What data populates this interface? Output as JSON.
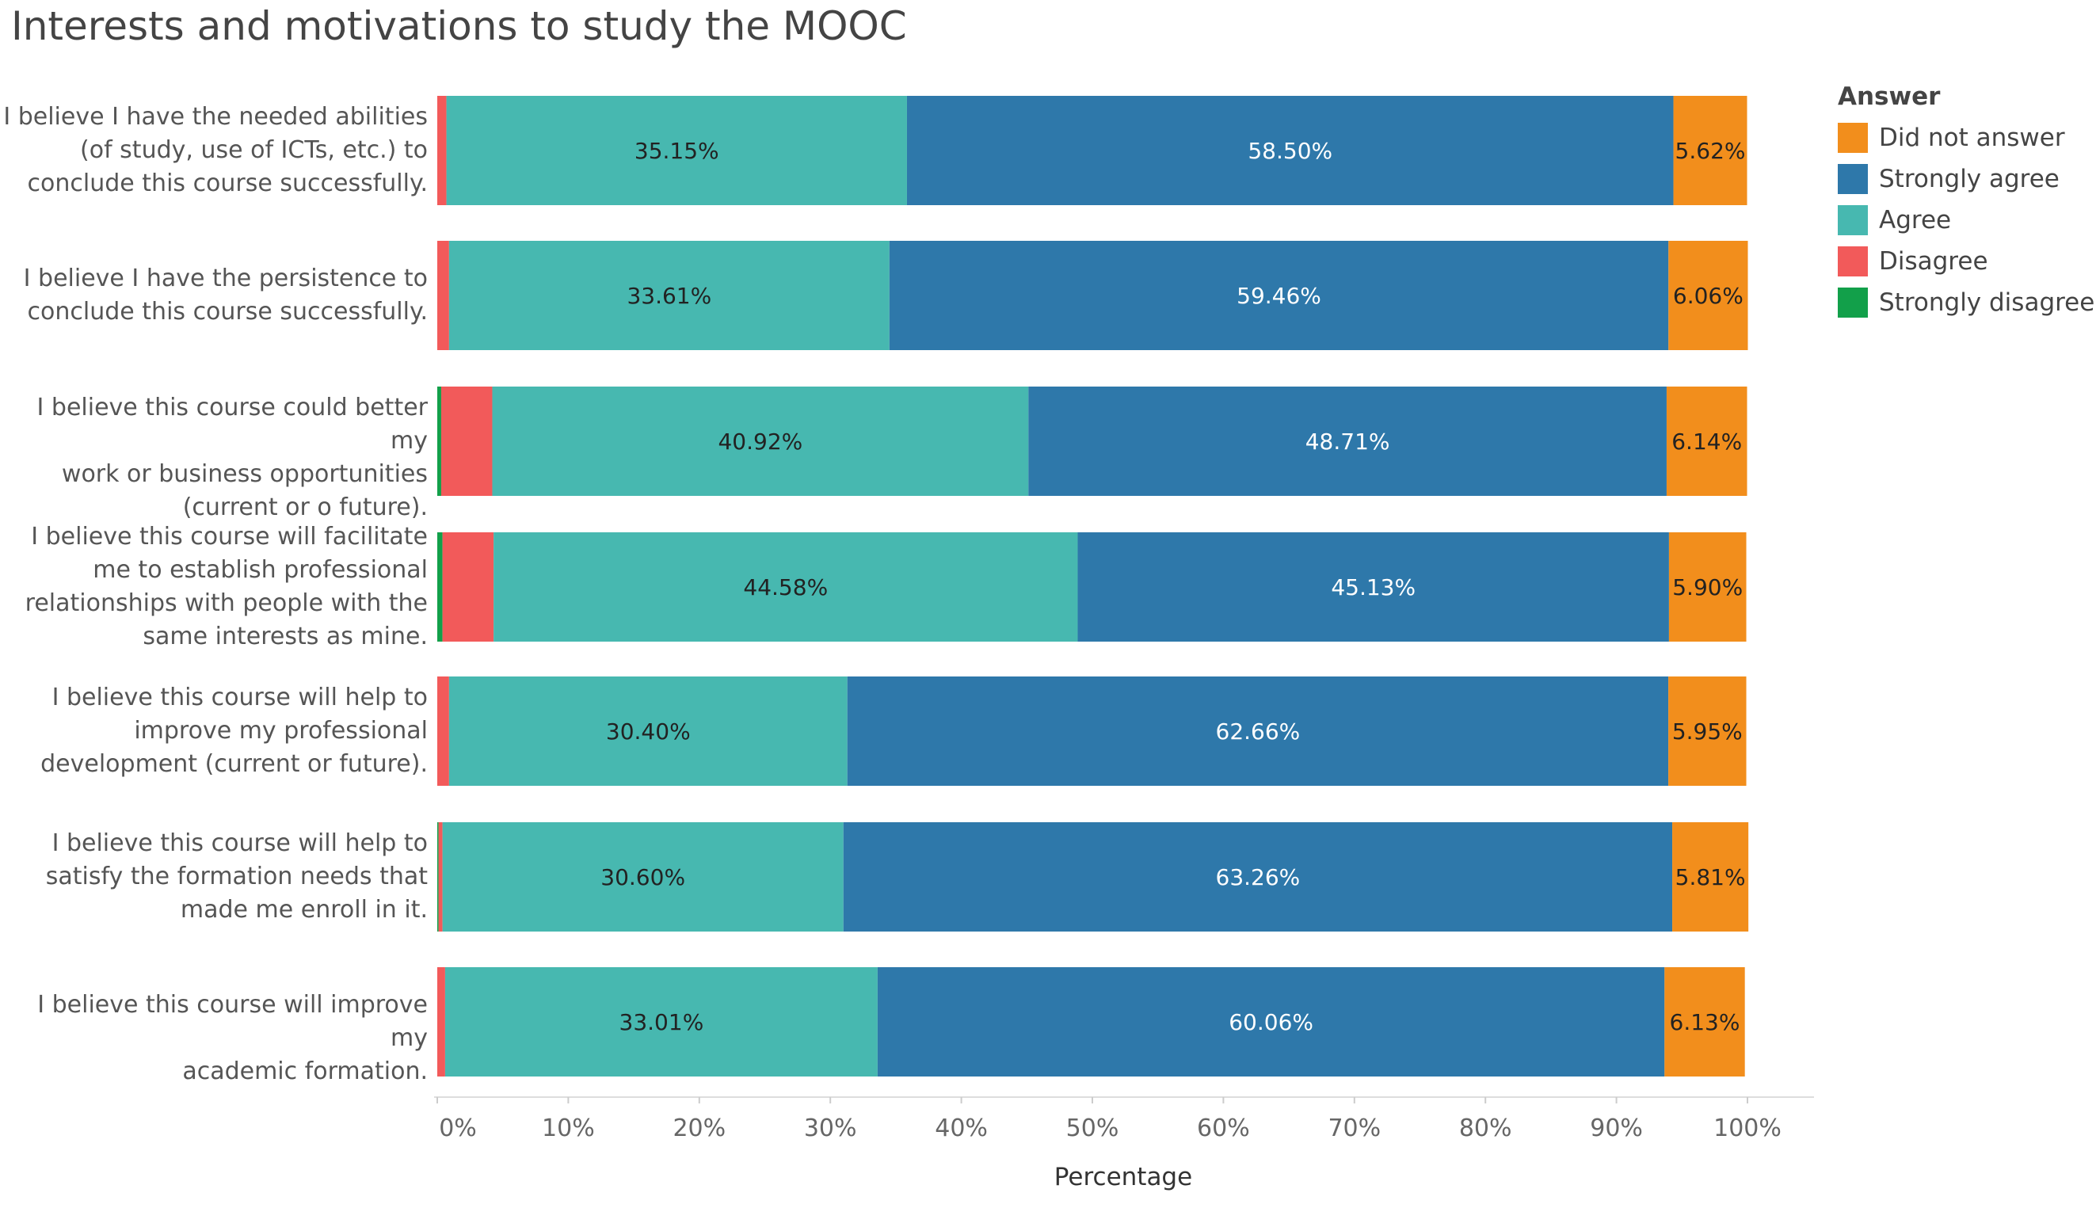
{
  "chart_data": {
    "type": "bar",
    "orientation": "horizontal",
    "stacked": true,
    "title": "Interests and motivations to study the MOOC",
    "xlabel": "Percentage",
    "ylabel": "",
    "xlim": [
      0,
      100
    ],
    "xticks": [
      "0%",
      "10%",
      "20%",
      "30%",
      "40%",
      "50%",
      "60%",
      "70%",
      "80%",
      "90%",
      "100%"
    ],
    "legend_title": "Answer",
    "legend_order": [
      "Did not answer",
      "Strongly agree",
      "Agree",
      "Disagree",
      "Strongly disagree"
    ],
    "stack_order": [
      "Strongly disagree",
      "Disagree",
      "Agree",
      "Strongly agree",
      "Did not answer"
    ],
    "colors": {
      "Did not answer": "#f28e1c",
      "Strongly agree": "#2e78aa",
      "Agree": "#47b8b0",
      "Disagree": "#f25a5a",
      "Strongly disagree": "#12a04a"
    },
    "categories": [
      [
        "I believe I have the needed abilities",
        "(of study, use of ICTs, etc.) to",
        "conclude this course successfully."
      ],
      [
        "I believe I have the persistence to",
        "conclude this course successfully."
      ],
      [
        "I believe this course could better my",
        "work or business opportunities",
        "(current or o future)."
      ],
      [
        "I believe this course will facilitate",
        "me to establish professional",
        "relationships with people with the",
        "same interests as mine."
      ],
      [
        "I believe this course will help to",
        "improve my professional",
        "development (current or future)."
      ],
      [
        "I believe this course will help to",
        "satisfy the formation needs that",
        "made me enroll in it."
      ],
      [
        "I believe this course will improve my",
        "academic formation."
      ]
    ],
    "series": [
      {
        "name": "Strongly disagree",
        "values": [
          0.0,
          0.0,
          0.3,
          0.4,
          0.0,
          0.1,
          0.0
        ]
      },
      {
        "name": "Disagree",
        "values": [
          0.7,
          0.9,
          3.9,
          3.9,
          0.9,
          0.3,
          0.6
        ]
      },
      {
        "name": "Agree",
        "values": [
          35.15,
          33.61,
          40.92,
          44.58,
          30.4,
          30.6,
          33.01
        ]
      },
      {
        "name": "Strongly agree",
        "values": [
          58.5,
          59.46,
          48.71,
          45.13,
          62.66,
          63.26,
          60.06
        ]
      },
      {
        "name": "Did not answer",
        "values": [
          5.62,
          6.06,
          6.14,
          5.9,
          5.95,
          5.81,
          6.13
        ]
      }
    ],
    "data_labels": [
      {
        "Agree": "35.15%",
        "Strongly agree": "58.50%",
        "Did not answer": "5.62%"
      },
      {
        "Agree": "33.61%",
        "Strongly agree": "59.46%",
        "Did not answer": "6.06%"
      },
      {
        "Agree": "40.92%",
        "Strongly agree": "48.71%",
        "Did not answer": "6.14%"
      },
      {
        "Agree": "44.58%",
        "Strongly agree": "45.13%",
        "Did not answer": "5.90%"
      },
      {
        "Agree": "30.40%",
        "Strongly agree": "62.66%",
        "Did not answer": "5.95%"
      },
      {
        "Agree": "30.60%",
        "Strongly agree": "63.26%",
        "Did not answer": "5.81%"
      },
      {
        "Agree": "33.01%",
        "Strongly agree": "60.06%",
        "Did not answer": "6.13%"
      }
    ]
  }
}
